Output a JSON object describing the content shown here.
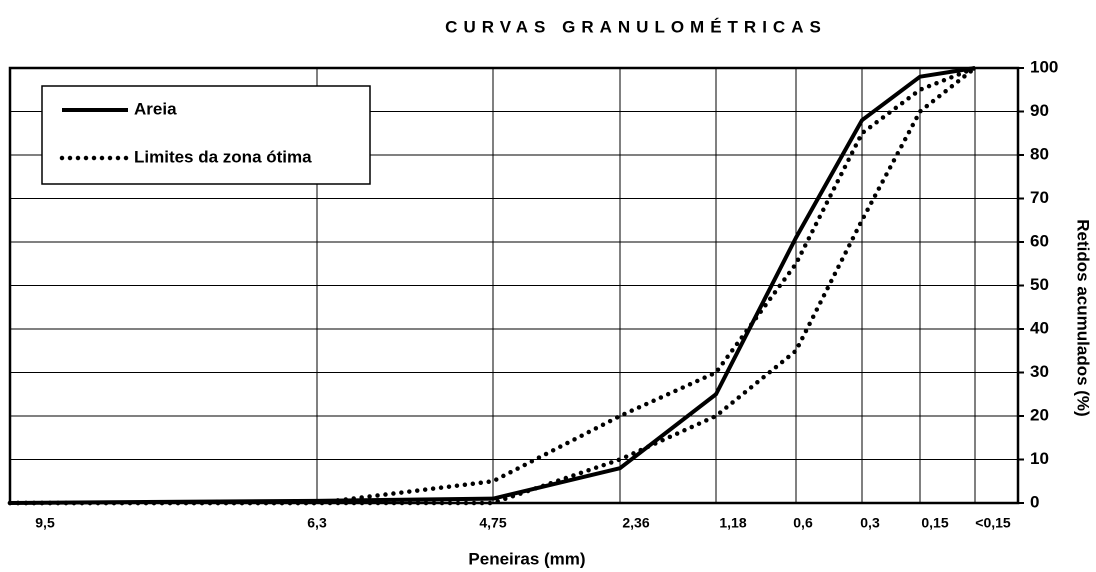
{
  "chart_data": {
    "type": "line",
    "title": "CURVAS GRANULOMÉTRICAS",
    "x_label": "Peneiras (mm)",
    "y_label": "Retidos acumulados (%)",
    "categories": [
      "9,5",
      "6,3",
      "4,75",
      "2,36",
      "1,18",
      "0,6",
      "0,3",
      "0,15",
      "<0,15"
    ],
    "series": [
      {
        "name": "Areia",
        "color": "#000000",
        "style": "solid",
        "values": [
          0,
          0.5,
          1,
          8,
          25,
          61,
          88,
          98,
          100
        ]
      },
      {
        "name": "Limites da zona ótima",
        "color": "#000000",
        "style": "dotted",
        "values": [
          0,
          0,
          5,
          20,
          30,
          55,
          85,
          95,
          100
        ]
      },
      {
        "color": "#000000",
        "style": "dotted",
        "values": [
          0,
          0,
          0,
          10,
          20,
          35,
          65,
          90,
          100
        ]
      }
    ],
    "ylim": [
      0,
      100
    ],
    "yticks": [
      0,
      10,
      20,
      30,
      40,
      50,
      60,
      70,
      80,
      90,
      100
    ],
    "grid": true,
    "legend": "upper left"
  }
}
